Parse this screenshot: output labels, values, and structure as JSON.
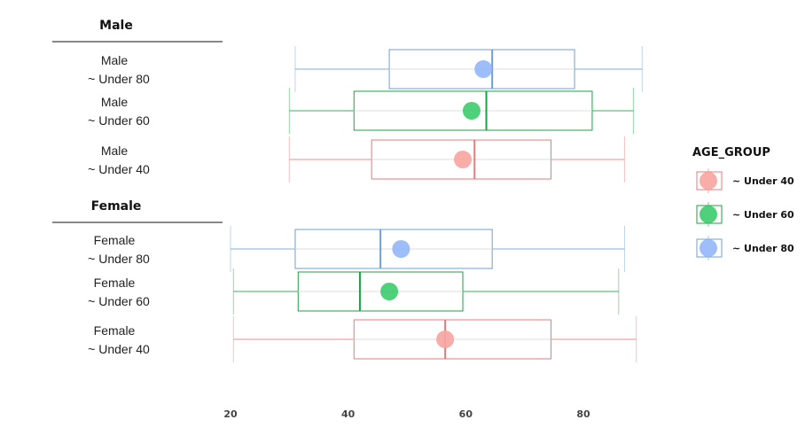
{
  "chart_data": {
    "type": "boxplot",
    "title": "",
    "xlabel": "",
    "ylabel": "",
    "xlim": [
      20,
      90
    ],
    "x_ticks": [
      20,
      40,
      60,
      80
    ],
    "grid": false,
    "legend": {
      "title": "AGE_GROUP",
      "placement": "right",
      "entries": [
        {
          "label": "~ Under 40",
          "color": "#E8797A",
          "fill": "#F8A49F"
        },
        {
          "label": "~ Under 60",
          "color": "#17A540",
          "fill": "#3CCB6B"
        },
        {
          "label": "~ Under 80",
          "color": "#6E9FD4",
          "fill": "#92B7FA"
        }
      ]
    },
    "groups": [
      {
        "title": "Male",
        "rows": [
          {
            "sex": "Male",
            "age_group": "~ Under 80",
            "whisker_low": 31,
            "q1": 47,
            "median": 64.5,
            "q3": 78.5,
            "whisker_high": 90,
            "mean": 63
          },
          {
            "sex": "Male",
            "age_group": "~ Under 60",
            "whisker_low": 30,
            "q1": 41,
            "median": 63.5,
            "q3": 81.5,
            "whisker_high": 88.5,
            "mean": 61
          },
          {
            "sex": "Male",
            "age_group": "~ Under 40",
            "whisker_low": 30,
            "q1": 44,
            "median": 61.5,
            "q3": 74.5,
            "whisker_high": 87,
            "mean": 59.5
          }
        ]
      },
      {
        "title": "Female",
        "rows": [
          {
            "sex": "Female",
            "age_group": "~ Under 80",
            "whisker_low": 20,
            "q1": 31,
            "median": 45.5,
            "q3": 64.5,
            "whisker_high": 87,
            "mean": 49
          },
          {
            "sex": "Female",
            "age_group": "~ Under 60",
            "whisker_low": 20.5,
            "q1": 31.5,
            "median": 42,
            "q3": 59.5,
            "whisker_high": 86,
            "mean": 47
          },
          {
            "sex": "Female",
            "age_group": "~ Under 40",
            "whisker_low": 20.5,
            "q1": 41,
            "median": 56.5,
            "q3": 74.5,
            "whisker_high": 89,
            "mean": 56.5
          }
        ]
      }
    ]
  }
}
